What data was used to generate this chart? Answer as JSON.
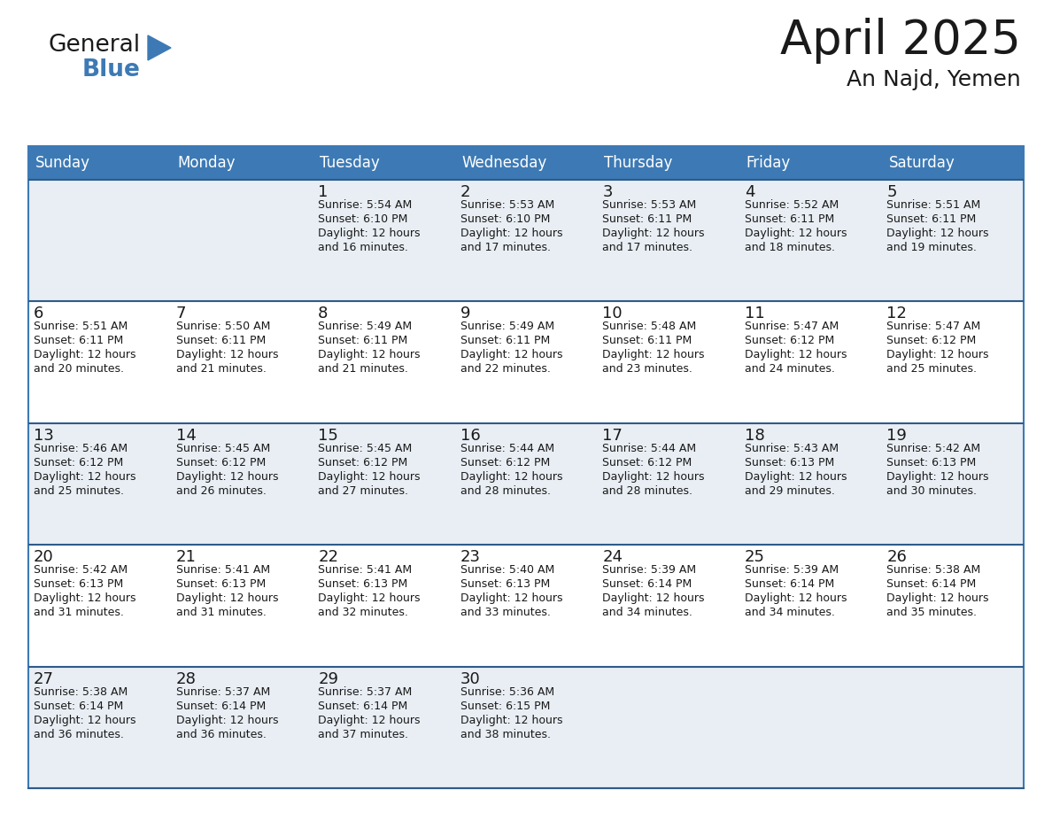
{
  "title": "April 2025",
  "subtitle": "An Najd, Yemen",
  "header_bg_color": "#3d7ab5",
  "header_text_color": "#ffffff",
  "row_bg_odd": "#e8eef4",
  "row_bg_even": "#ffffff",
  "row_border_color": "#2e5b8a",
  "outer_border_color": "#3d7ab5",
  "cell_text_color": "#1a1a1a",
  "days_of_week": [
    "Sunday",
    "Monday",
    "Tuesday",
    "Wednesday",
    "Thursday",
    "Friday",
    "Saturday"
  ],
  "calendar": [
    [
      {
        "day": "",
        "sunrise": "",
        "sunset": "",
        "daylight": ""
      },
      {
        "day": "",
        "sunrise": "",
        "sunset": "",
        "daylight": ""
      },
      {
        "day": "1",
        "sunrise": "5:54 AM",
        "sunset": "6:10 PM",
        "daylight": "12 hours and 16 minutes."
      },
      {
        "day": "2",
        "sunrise": "5:53 AM",
        "sunset": "6:10 PM",
        "daylight": "12 hours and 17 minutes."
      },
      {
        "day": "3",
        "sunrise": "5:53 AM",
        "sunset": "6:11 PM",
        "daylight": "12 hours and 17 minutes."
      },
      {
        "day": "4",
        "sunrise": "5:52 AM",
        "sunset": "6:11 PM",
        "daylight": "12 hours and 18 minutes."
      },
      {
        "day": "5",
        "sunrise": "5:51 AM",
        "sunset": "6:11 PM",
        "daylight": "12 hours and 19 minutes."
      }
    ],
    [
      {
        "day": "6",
        "sunrise": "5:51 AM",
        "sunset": "6:11 PM",
        "daylight": "12 hours and 20 minutes."
      },
      {
        "day": "7",
        "sunrise": "5:50 AM",
        "sunset": "6:11 PM",
        "daylight": "12 hours and 21 minutes."
      },
      {
        "day": "8",
        "sunrise": "5:49 AM",
        "sunset": "6:11 PM",
        "daylight": "12 hours and 21 minutes."
      },
      {
        "day": "9",
        "sunrise": "5:49 AM",
        "sunset": "6:11 PM",
        "daylight": "12 hours and 22 minutes."
      },
      {
        "day": "10",
        "sunrise": "5:48 AM",
        "sunset": "6:11 PM",
        "daylight": "12 hours and 23 minutes."
      },
      {
        "day": "11",
        "sunrise": "5:47 AM",
        "sunset": "6:12 PM",
        "daylight": "12 hours and 24 minutes."
      },
      {
        "day": "12",
        "sunrise": "5:47 AM",
        "sunset": "6:12 PM",
        "daylight": "12 hours and 25 minutes."
      }
    ],
    [
      {
        "day": "13",
        "sunrise": "5:46 AM",
        "sunset": "6:12 PM",
        "daylight": "12 hours and 25 minutes."
      },
      {
        "day": "14",
        "sunrise": "5:45 AM",
        "sunset": "6:12 PM",
        "daylight": "12 hours and 26 minutes."
      },
      {
        "day": "15",
        "sunrise": "5:45 AM",
        "sunset": "6:12 PM",
        "daylight": "12 hours and 27 minutes."
      },
      {
        "day": "16",
        "sunrise": "5:44 AM",
        "sunset": "6:12 PM",
        "daylight": "12 hours and 28 minutes."
      },
      {
        "day": "17",
        "sunrise": "5:44 AM",
        "sunset": "6:12 PM",
        "daylight": "12 hours and 28 minutes."
      },
      {
        "day": "18",
        "sunrise": "5:43 AM",
        "sunset": "6:13 PM",
        "daylight": "12 hours and 29 minutes."
      },
      {
        "day": "19",
        "sunrise": "5:42 AM",
        "sunset": "6:13 PM",
        "daylight": "12 hours and 30 minutes."
      }
    ],
    [
      {
        "day": "20",
        "sunrise": "5:42 AM",
        "sunset": "6:13 PM",
        "daylight": "12 hours and 31 minutes."
      },
      {
        "day": "21",
        "sunrise": "5:41 AM",
        "sunset": "6:13 PM",
        "daylight": "12 hours and 31 minutes."
      },
      {
        "day": "22",
        "sunrise": "5:41 AM",
        "sunset": "6:13 PM",
        "daylight": "12 hours and 32 minutes."
      },
      {
        "day": "23",
        "sunrise": "5:40 AM",
        "sunset": "6:13 PM",
        "daylight": "12 hours and 33 minutes."
      },
      {
        "day": "24",
        "sunrise": "5:39 AM",
        "sunset": "6:14 PM",
        "daylight": "12 hours and 34 minutes."
      },
      {
        "day": "25",
        "sunrise": "5:39 AM",
        "sunset": "6:14 PM",
        "daylight": "12 hours and 34 minutes."
      },
      {
        "day": "26",
        "sunrise": "5:38 AM",
        "sunset": "6:14 PM",
        "daylight": "12 hours and 35 minutes."
      }
    ],
    [
      {
        "day": "27",
        "sunrise": "5:38 AM",
        "sunset": "6:14 PM",
        "daylight": "12 hours and 36 minutes."
      },
      {
        "day": "28",
        "sunrise": "5:37 AM",
        "sunset": "6:14 PM",
        "daylight": "12 hours and 36 minutes."
      },
      {
        "day": "29",
        "sunrise": "5:37 AM",
        "sunset": "6:14 PM",
        "daylight": "12 hours and 37 minutes."
      },
      {
        "day": "30",
        "sunrise": "5:36 AM",
        "sunset": "6:15 PM",
        "daylight": "12 hours and 38 minutes."
      },
      {
        "day": "",
        "sunrise": "",
        "sunset": "",
        "daylight": ""
      },
      {
        "day": "",
        "sunrise": "",
        "sunset": "",
        "daylight": ""
      },
      {
        "day": "",
        "sunrise": "",
        "sunset": "",
        "daylight": ""
      }
    ]
  ],
  "logo_color_general": "#1a1a1a",
  "logo_color_blue": "#3d7ab5",
  "logo_triangle_color": "#3d7ab5",
  "title_fontsize": 38,
  "subtitle_fontsize": 18,
  "header_fontsize": 12,
  "day_num_fontsize": 13,
  "cell_text_fontsize": 9
}
